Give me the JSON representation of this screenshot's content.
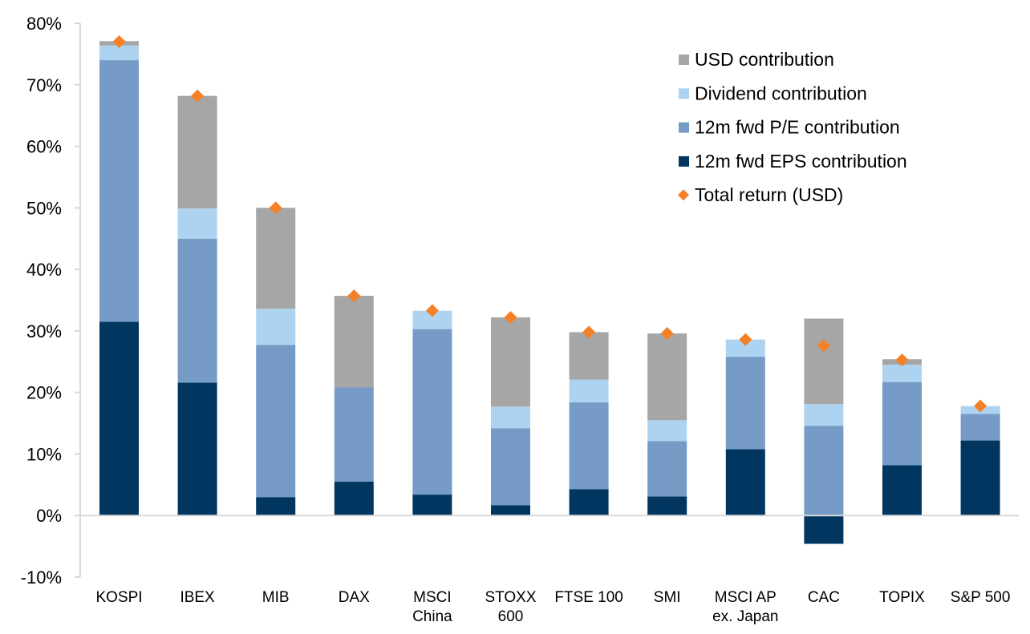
{
  "chart_data": {
    "type": "bar",
    "stacked": true,
    "title": "",
    "xlabel": "",
    "ylabel": "",
    "ylim": [
      -10,
      80
    ],
    "yticks": [
      -10,
      0,
      10,
      20,
      30,
      40,
      50,
      60,
      70,
      80
    ],
    "ytick_labels": [
      "-10%",
      "0%",
      "10%",
      "20%",
      "30%",
      "40%",
      "50%",
      "60%",
      "70%",
      "80%"
    ],
    "grid": false,
    "legend_position": "top-right",
    "categories": [
      [
        "KOSPI"
      ],
      [
        "IBEX"
      ],
      [
        "MIB"
      ],
      [
        "DAX"
      ],
      [
        "MSCI",
        "China"
      ],
      [
        "STOXX",
        "600"
      ],
      [
        "FTSE 100"
      ],
      [
        "SMI"
      ],
      [
        "MSCI AP",
        "ex. Japan"
      ],
      [
        "CAC"
      ],
      [
        "TOPIX"
      ],
      [
        "S&P 500"
      ]
    ],
    "series": [
      {
        "name": "12m fwd EPS contribution",
        "color": "#003660",
        "kind": "bar",
        "values": [
          31.5,
          21.6,
          3.0,
          5.5,
          3.4,
          1.7,
          4.3,
          3.1,
          10.8,
          -4.6,
          8.2,
          12.2
        ]
      },
      {
        "name": "12m fwd P/E contribution",
        "color": "#759BC6",
        "kind": "bar",
        "values": [
          42.5,
          23.4,
          24.7,
          15.3,
          26.9,
          12.5,
          14.1,
          9.0,
          15.0,
          14.6,
          13.5,
          4.3
        ]
      },
      {
        "name": "Dividend contribution",
        "color": "#AED3F0",
        "kind": "bar",
        "values": [
          2.4,
          4.9,
          5.9,
          0.0,
          3.0,
          3.5,
          3.7,
          3.4,
          2.8,
          3.5,
          2.8,
          1.3
        ]
      },
      {
        "name": "USD contribution",
        "color": "#A6A6A6",
        "kind": "bar",
        "values": [
          0.7,
          18.3,
          16.4,
          14.9,
          0.0,
          14.5,
          7.7,
          14.1,
          0.0,
          13.9,
          0.9,
          0.0
        ]
      },
      {
        "name": "Total return (USD)",
        "color": "#F58025",
        "kind": "diamond",
        "values": [
          77.0,
          68.2,
          50.0,
          35.7,
          33.3,
          32.2,
          29.8,
          29.6,
          28.6,
          27.6,
          25.3,
          17.8
        ]
      }
    ],
    "legend": [
      {
        "label": "USD contribution",
        "color": "#A6A6A6",
        "marker": "square"
      },
      {
        "label": "Dividend contribution",
        "color": "#AED3F0",
        "marker": "square"
      },
      {
        "label": "12m fwd P/E contribution",
        "color": "#759BC6",
        "marker": "square"
      },
      {
        "label": "12m fwd EPS contribution",
        "color": "#003660",
        "marker": "square"
      },
      {
        "label": "Total return (USD)",
        "color": "#F58025",
        "marker": "diamond"
      }
    ],
    "axis_color": "#D9D9D9"
  }
}
